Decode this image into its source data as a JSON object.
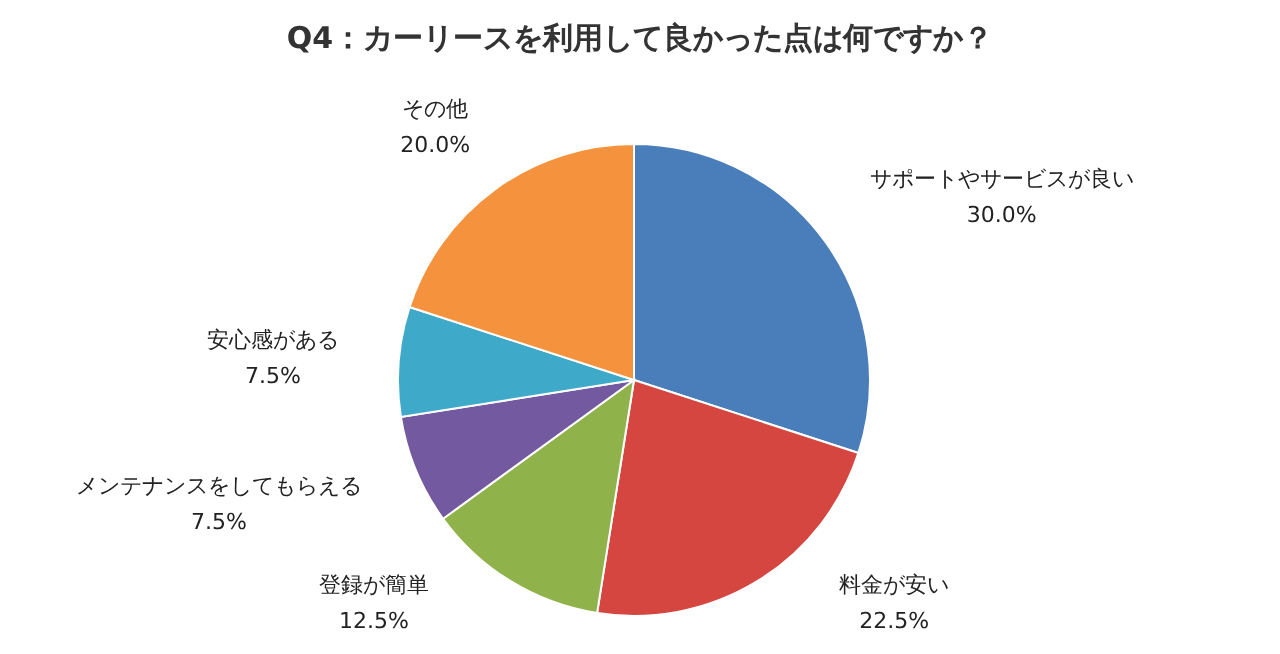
{
  "chart_data": {
    "type": "pie",
    "title": "Q4：カーリースを利用して良かった点は何ですか？",
    "categories": [
      "サポートやサービスが良い",
      "料金が安い",
      "登録が簡単",
      "メンテナンスをしてもらえる",
      "安心感がある",
      "その他"
    ],
    "values": [
      30.0,
      22.5,
      12.5,
      7.5,
      7.5,
      20.0
    ],
    "value_labels": [
      "30.0%",
      "22.5%",
      "12.5%",
      "7.5%",
      "7.5%",
      "20.0%"
    ],
    "colors": [
      "#4a7ebb",
      "#d4463f",
      "#8fb34a",
      "#7359a0",
      "#3fa9c9",
      "#f5923e"
    ]
  }
}
